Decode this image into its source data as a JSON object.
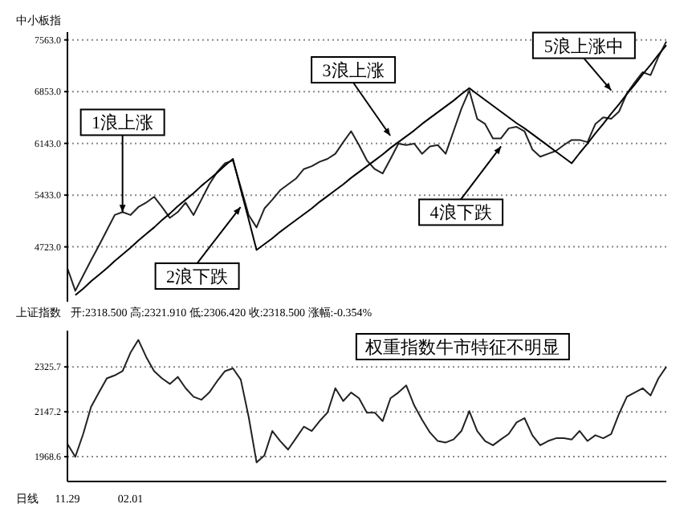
{
  "chart_data": [
    {
      "type": "line",
      "title": "中小板指",
      "categories": [
        null,
        null,
        null,
        null,
        null,
        null,
        null,
        null,
        null,
        null,
        null,
        null,
        null,
        null,
        null,
        null,
        null,
        null,
        null,
        null,
        null,
        null,
        null,
        null,
        null,
        null,
        null,
        null,
        null,
        null,
        null,
        null,
        null,
        null,
        null,
        null,
        null,
        null,
        null,
        null,
        null,
        null,
        null,
        null,
        null,
        null,
        null,
        null,
        null,
        null,
        null,
        null,
        null,
        null,
        null,
        null,
        null,
        null,
        null,
        null,
        null,
        null,
        null,
        null,
        null,
        null,
        null,
        null,
        null,
        null,
        null,
        null,
        null,
        null,
        null,
        null,
        null
      ],
      "ylim": [
        3970,
        7670
      ],
      "yticks": [
        {
          "value": 4723,
          "label": "4723.0"
        },
        {
          "value": 5433,
          "label": "5433.0"
        },
        {
          "value": 6143,
          "label": "6143.0"
        },
        {
          "value": 6853,
          "label": "6853.0"
        },
        {
          "value": 7563,
          "label": "7563.0"
        }
      ],
      "grid": "y",
      "tick_labels": "y",
      "series": [
        {
          "color": "#222222",
          "values": [
            4430,
            4120,
            4330,
            4540,
            4740,
            4950,
            5160,
            5200,
            5160,
            5270,
            5330,
            5410,
            5270,
            5120,
            5200,
            5330,
            5160,
            5370,
            5580,
            5750,
            5870,
            5910,
            5540,
            5160,
            4990,
            5250,
            5370,
            5500,
            5580,
            5660,
            5790,
            5830,
            5890,
            5930,
            6000,
            6160,
            6310,
            6120,
            5910,
            5790,
            5730,
            5930,
            6140,
            6120,
            6140,
            6000,
            6100,
            6120,
            6000,
            6310,
            6620,
            6870,
            6480,
            6410,
            6210,
            6210,
            6350,
            6370,
            6310,
            6060,
            5960,
            6000,
            6040,
            6120,
            6190,
            6190,
            6160,
            6410,
            6500,
            6480,
            6580,
            6830,
            6980,
            7120,
            7080,
            7330,
            7540
          ]
        },
        {
          "type": "line",
          "color": "#000000",
          "values": [
            null,
            4060,
            4150,
            4250,
            4340,
            4430,
            4530,
            4620,
            4710,
            4810,
            4900,
            4990,
            5090,
            5180,
            5280,
            5370,
            5460,
            5560,
            5650,
            5740,
            5840,
            5930,
            5510,
            5100,
            4680,
            4760,
            4840,
            4930,
            5010,
            5090,
            5170,
            5250,
            5340,
            5420,
            5500,
            5580,
            5670,
            5750,
            5830,
            5910,
            5990,
            6080,
            6160,
            6240,
            6320,
            6410,
            6490,
            6570,
            6650,
            6730,
            6820,
            6900,
            6820,
            6740,
            6660,
            6580,
            6500,
            6420,
            6350,
            6270,
            6190,
            6110,
            6030,
            5950,
            5870,
            6010,
            6140,
            6280,
            6410,
            6550,
            6680,
            6820,
            6950,
            7090,
            7220,
            7360,
            7490
          ]
        }
      ],
      "annotations": [
        "1浪上涨",
        "2浪下跌",
        "3浪上涨",
        "4浪下跌",
        "5浪上涨中"
      ]
    },
    {
      "type": "line",
      "title": "上证指数",
      "subtitle": "开:2318.500 高:2321.910 低:2306.420 收:2318.500 涨幅:-0.354%",
      "categories": [
        "11.29",
        null,
        null,
        null,
        null,
        null,
        null,
        null,
        "02.01",
        null,
        null,
        null,
        null,
        null,
        null,
        null,
        null,
        null,
        null,
        null,
        null,
        null,
        null,
        null,
        null,
        null,
        null,
        null,
        null,
        null,
        null,
        null,
        null,
        null,
        null,
        null,
        null,
        null,
        null,
        null,
        null,
        null,
        null,
        null,
        null,
        null,
        null,
        null,
        null,
        null,
        null,
        null,
        null,
        null,
        null,
        null,
        null,
        null,
        null,
        null,
        null,
        null,
        null,
        null,
        null,
        null,
        null,
        null,
        null,
        null,
        null,
        null,
        null,
        null,
        null,
        null,
        null
      ],
      "ylim": [
        1870,
        2470
      ],
      "yticks": [
        1968.6,
        2147.2,
        2325.7
      ],
      "grid": "y",
      "series": [
        {
          "color": "#222222",
          "values": [
            2019,
            1968,
            2059,
            2167,
            2224,
            2280,
            2292,
            2309,
            2382,
            2433,
            2365,
            2309,
            2280,
            2258,
            2286,
            2241,
            2207,
            2195,
            2224,
            2269,
            2309,
            2320,
            2275,
            2127,
            1946,
            1974,
            2071,
            2031,
            1997,
            2042,
            2088,
            2071,
            2110,
            2144,
            2241,
            2190,
            2224,
            2201,
            2144,
            2144,
            2110,
            2201,
            2224,
            2252,
            2173,
            2116,
            2065,
            2031,
            2025,
            2037,
            2071,
            2150,
            2071,
            2031,
            2014,
            2037,
            2059,
            2105,
            2122,
            2054,
            2014,
            2031,
            2042,
            2042,
            2037,
            2071,
            2031,
            2054,
            2042,
            2059,
            2139,
            2207,
            2224,
            2241,
            2212,
            2280,
            2326
          ]
        }
      ],
      "annotations": [
        "权重指数牛市特征不明显",
        "日线"
      ]
    }
  ]
}
